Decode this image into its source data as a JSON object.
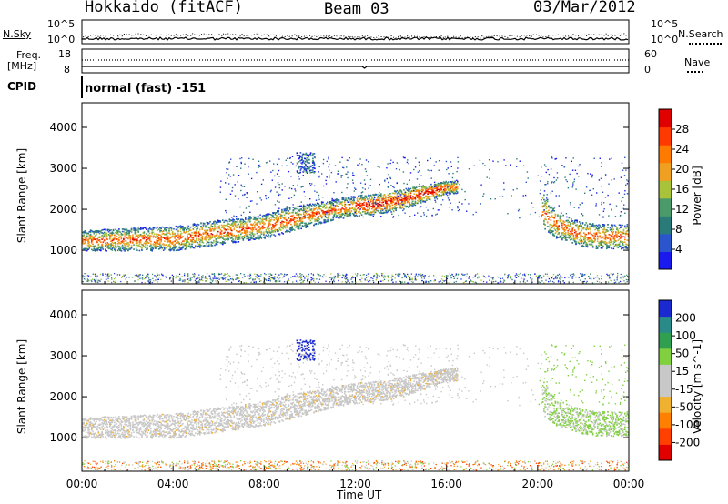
{
  "header": {
    "station": "Hokkaido (fitACF)",
    "beam": "Beam 03",
    "date": "03/Mar/2012"
  },
  "top_panels": {
    "nsky_label": "N.Sky",
    "nsky_ticks": [
      "10^5",
      "10^0"
    ],
    "nsearch_label": "N.Search",
    "nsearch_ticks": [
      "10^5",
      "10^0"
    ],
    "freq_label": "Freq.",
    "freq_unit": "[MHz]",
    "freq_ticks": [
      "18",
      "8"
    ],
    "nave_label": "Nave",
    "nave_ticks": [
      "60",
      "0"
    ],
    "cpid_label": "CPID",
    "cpid_value": "normal (fast) -151"
  },
  "colors": {
    "power": [
      "#1a1aee",
      "#2a55cc",
      "#2a7a7a",
      "#4a9a6a",
      "#a8c23a",
      "#f0a020",
      "#ff7a00",
      "#ff3a00",
      "#e00000"
    ],
    "velocity": [
      "#e00000",
      "#ff4000",
      "#ff8000",
      "#f0b030",
      "#c8c8c8",
      "#c8c8c8",
      "#80d040",
      "#30a050",
      "#2a8a8a",
      "#1a2ad0"
    ]
  },
  "chart_data": [
    {
      "type": "heatmap",
      "name": "power",
      "ylabel": "Slant Range [km]",
      "xlabel": "",
      "ylim": [
        180,
        4600
      ],
      "yticks": [
        1000,
        2000,
        3000,
        4000
      ],
      "colorbar_label": "Power [dB]",
      "colorbar_ticks": [
        "4",
        "8",
        "12",
        "16",
        "20",
        "24",
        "28"
      ],
      "colorbar_range": [
        0,
        32
      ],
      "bands": [
        {
          "t": [
            0,
            4,
            8,
            9,
            10,
            11,
            12,
            13,
            14,
            15,
            16
          ],
          "r_low": [
            1000,
            1000,
            1300,
            1450,
            1600,
            1750,
            1850,
            1900,
            2000,
            2200,
            2400
          ],
          "r_high": [
            1500,
            1600,
            1900,
            2050,
            2150,
            2250,
            2350,
            2400,
            2500,
            2600,
            2700
          ]
        },
        {
          "t": [
            20.2,
            20.8,
            21.4,
            22,
            22.6,
            24
          ],
          "r_low": [
            1550,
            1300,
            1200,
            1100,
            1050,
            1050
          ],
          "r_high": [
            2400,
            2000,
            1800,
            1700,
            1650,
            1650
          ]
        }
      ]
    },
    {
      "type": "heatmap",
      "name": "velocity",
      "ylabel": "Slant Range [km]",
      "xlabel": "Time UT",
      "ylim": [
        180,
        4600
      ],
      "yticks": [
        1000,
        2000,
        3000,
        4000
      ],
      "colorbar_label": "Velocity [m s^-1]",
      "colorbar_ticks": [
        "-200",
        "-100",
        "-50",
        "-15",
        "15",
        "50",
        "100",
        "200"
      ],
      "colorbar_range": [
        -250,
        250
      ],
      "xticks": [
        "00:00",
        "04:00",
        "08:00",
        "12:00",
        "16:00",
        "20:00",
        "00:00"
      ]
    }
  ]
}
